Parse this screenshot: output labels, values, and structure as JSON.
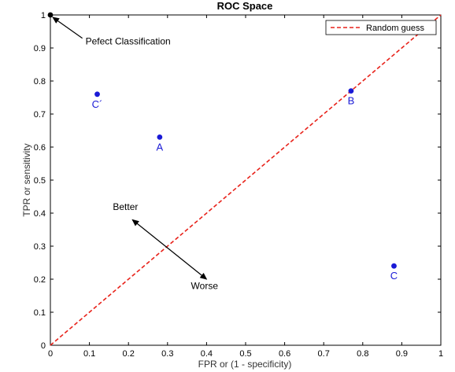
{
  "chart_data": {
    "type": "scatter",
    "title": "ROC Space",
    "xlabel": "FPR or (1 - specificity)",
    "ylabel": "TPR or sensitivity",
    "xlim": [
      0,
      1
    ],
    "ylim": [
      0,
      1
    ],
    "x_ticks": [
      "0",
      "0.1",
      "0.2",
      "0.3",
      "0.4",
      "0.5",
      "0.6",
      "0.7",
      "0.8",
      "0.9",
      "1"
    ],
    "y_ticks": [
      "0",
      "0.1",
      "0.2",
      "0.3",
      "0.4",
      "0.5",
      "0.6",
      "0.7",
      "0.8",
      "0.9",
      "1"
    ],
    "grid": false,
    "legend_position": "top-right",
    "points": [
      {
        "label": "",
        "x": 0,
        "y": 1,
        "color": "#000000"
      },
      {
        "label": "A",
        "x": 0.28,
        "y": 0.63,
        "color": "#1a1ad6"
      },
      {
        "label": "B",
        "x": 0.77,
        "y": 0.77,
        "color": "#1a1ad6"
      },
      {
        "label": "C",
        "x": 0.88,
        "y": 0.24,
        "color": "#1a1ad6"
      },
      {
        "label": "C´",
        "x": 0.12,
        "y": 0.76,
        "color": "#1a1ad6"
      }
    ],
    "series": [
      {
        "name": "Random guess",
        "x": [
          0,
          1
        ],
        "y": [
          0,
          1
        ],
        "color": "#e8221a",
        "style": "dashed"
      }
    ],
    "annotations": {
      "perfect": {
        "text": "Pefect Classification",
        "x": 0.09,
        "y": 0.92,
        "arrow_to": [
          0,
          1
        ]
      },
      "better": {
        "text": "Better",
        "x": 0.16,
        "y": 0.41
      },
      "worse": {
        "text": "Worse",
        "x": 0.36,
        "y": 0.17
      },
      "better_worse_arrow": {
        "from": [
          0.21,
          0.38
        ],
        "to": [
          0.4,
          0.2
        ]
      }
    }
  }
}
